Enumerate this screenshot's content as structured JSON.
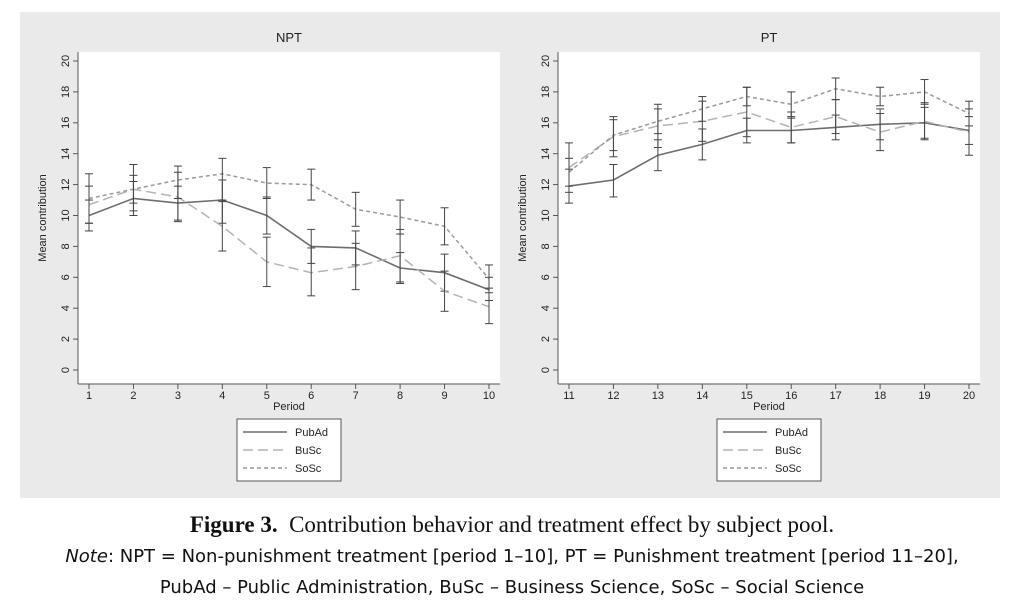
{
  "figure": {
    "caption_label": "Figure 3.",
    "caption_text": "Contribution behavior and treatment effect by subject pool.",
    "note_label": "Note",
    "note_line1": ": NPT = Non-punishment treatment [period 1–10], PT = Punishment treatment [period 11–20],",
    "note_line2": "PubAd – Public Administration, BuSc – Business Science, SoSc – Social Science"
  },
  "colors": {
    "panel_background": "#eaeaea",
    "plot_background": "#ffffff",
    "line": "#555555",
    "pubad": "#6e6e6e",
    "busc": "#b4b4b4",
    "sosc": "#9a9a9a"
  },
  "chart_data": [
    {
      "type": "line",
      "title": "NPT",
      "xlabel": "Period",
      "ylabel": "Mean contribution",
      "x": [
        1,
        2,
        3,
        4,
        5,
        6,
        7,
        8,
        9,
        10
      ],
      "ylim": [
        0,
        20
      ],
      "yticks": [
        0,
        2,
        4,
        6,
        8,
        10,
        12,
        14,
        16,
        18,
        20
      ],
      "grid": false,
      "legend": "below",
      "series": [
        {
          "name": "PubAd",
          "style": "solid",
          "values": [
            10.0,
            11.1,
            10.8,
            11.0,
            10.0,
            8.0,
            7.9,
            6.6,
            6.3,
            5.2
          ],
          "error_low": [
            9.0,
            10.0,
            9.7,
            9.5,
            8.8,
            6.9,
            6.8,
            5.6,
            5.1,
            4.5
          ],
          "error_high": [
            11.0,
            12.2,
            11.9,
            12.3,
            11.2,
            9.1,
            9.0,
            7.6,
            7.5,
            6.0
          ]
        },
        {
          "name": "BuSc",
          "style": "dashed",
          "values": [
            10.7,
            11.7,
            11.2,
            9.3,
            7.0,
            6.3,
            6.7,
            7.4,
            5.1,
            4.1
          ],
          "error_low": [
            9.5,
            10.8,
            9.6,
            7.7,
            5.4,
            4.8,
            5.2,
            5.7,
            3.8,
            3.0
          ],
          "error_high": [
            11.9,
            12.6,
            12.8,
            10.9,
            8.6,
            7.9,
            8.2,
            9.1,
            6.4,
            5.3
          ]
        },
        {
          "name": "SoSc",
          "style": "dotted",
          "values": [
            11.1,
            11.7,
            12.3,
            12.7,
            12.1,
            12.0,
            10.4,
            9.9,
            9.3,
            5.9
          ],
          "error_low": [
            9.5,
            10.3,
            11.1,
            11.0,
            11.1,
            11.0,
            9.3,
            8.8,
            8.1,
            5.0
          ],
          "error_high": [
            12.7,
            13.3,
            13.2,
            13.7,
            13.1,
            13.0,
            11.5,
            11.0,
            10.5,
            6.8
          ]
        }
      ]
    },
    {
      "type": "line",
      "title": "PT",
      "xlabel": "Period",
      "ylabel": "Mean contribution",
      "x": [
        11,
        12,
        13,
        14,
        15,
        16,
        17,
        18,
        19,
        20
      ],
      "ylim": [
        0,
        20
      ],
      "yticks": [
        0,
        2,
        4,
        6,
        8,
        10,
        12,
        14,
        16,
        18,
        20
      ],
      "grid": false,
      "legend": "below",
      "series": [
        {
          "name": "PubAd",
          "style": "solid",
          "values": [
            11.9,
            12.3,
            13.9,
            14.6,
            15.5,
            15.5,
            15.7,
            15.9,
            16.0,
            15.5
          ],
          "error_low": [
            10.8,
            11.2,
            12.9,
            13.6,
            14.7,
            14.7,
            14.9,
            14.9,
            15.0,
            14.6
          ],
          "error_high": [
            13.0,
            13.3,
            14.9,
            15.6,
            16.3,
            16.3,
            16.5,
            16.9,
            17.0,
            16.4
          ]
        },
        {
          "name": "BuSc",
          "style": "dashed",
          "values": [
            13.1,
            15.1,
            15.8,
            16.1,
            16.7,
            15.7,
            16.4,
            15.4,
            16.1,
            15.4
          ],
          "error_low": [
            11.5,
            13.8,
            14.4,
            14.8,
            15.1,
            14.7,
            15.3,
            14.2,
            14.9,
            13.9
          ],
          "error_high": [
            14.7,
            16.4,
            17.2,
            17.4,
            18.3,
            16.7,
            17.5,
            16.6,
            17.3,
            16.9
          ]
        },
        {
          "name": "SoSc",
          "style": "dotted",
          "values": [
            12.8,
            15.2,
            16.1,
            16.9,
            17.7,
            17.2,
            18.2,
            17.7,
            18.0,
            16.6
          ],
          "error_low": [
            11.9,
            14.2,
            15.3,
            16.1,
            17.1,
            16.4,
            17.5,
            17.1,
            17.2,
            15.8
          ],
          "error_high": [
            13.7,
            16.2,
            16.9,
            17.7,
            18.3,
            18.0,
            18.9,
            18.3,
            18.8,
            17.4
          ]
        }
      ]
    }
  ]
}
